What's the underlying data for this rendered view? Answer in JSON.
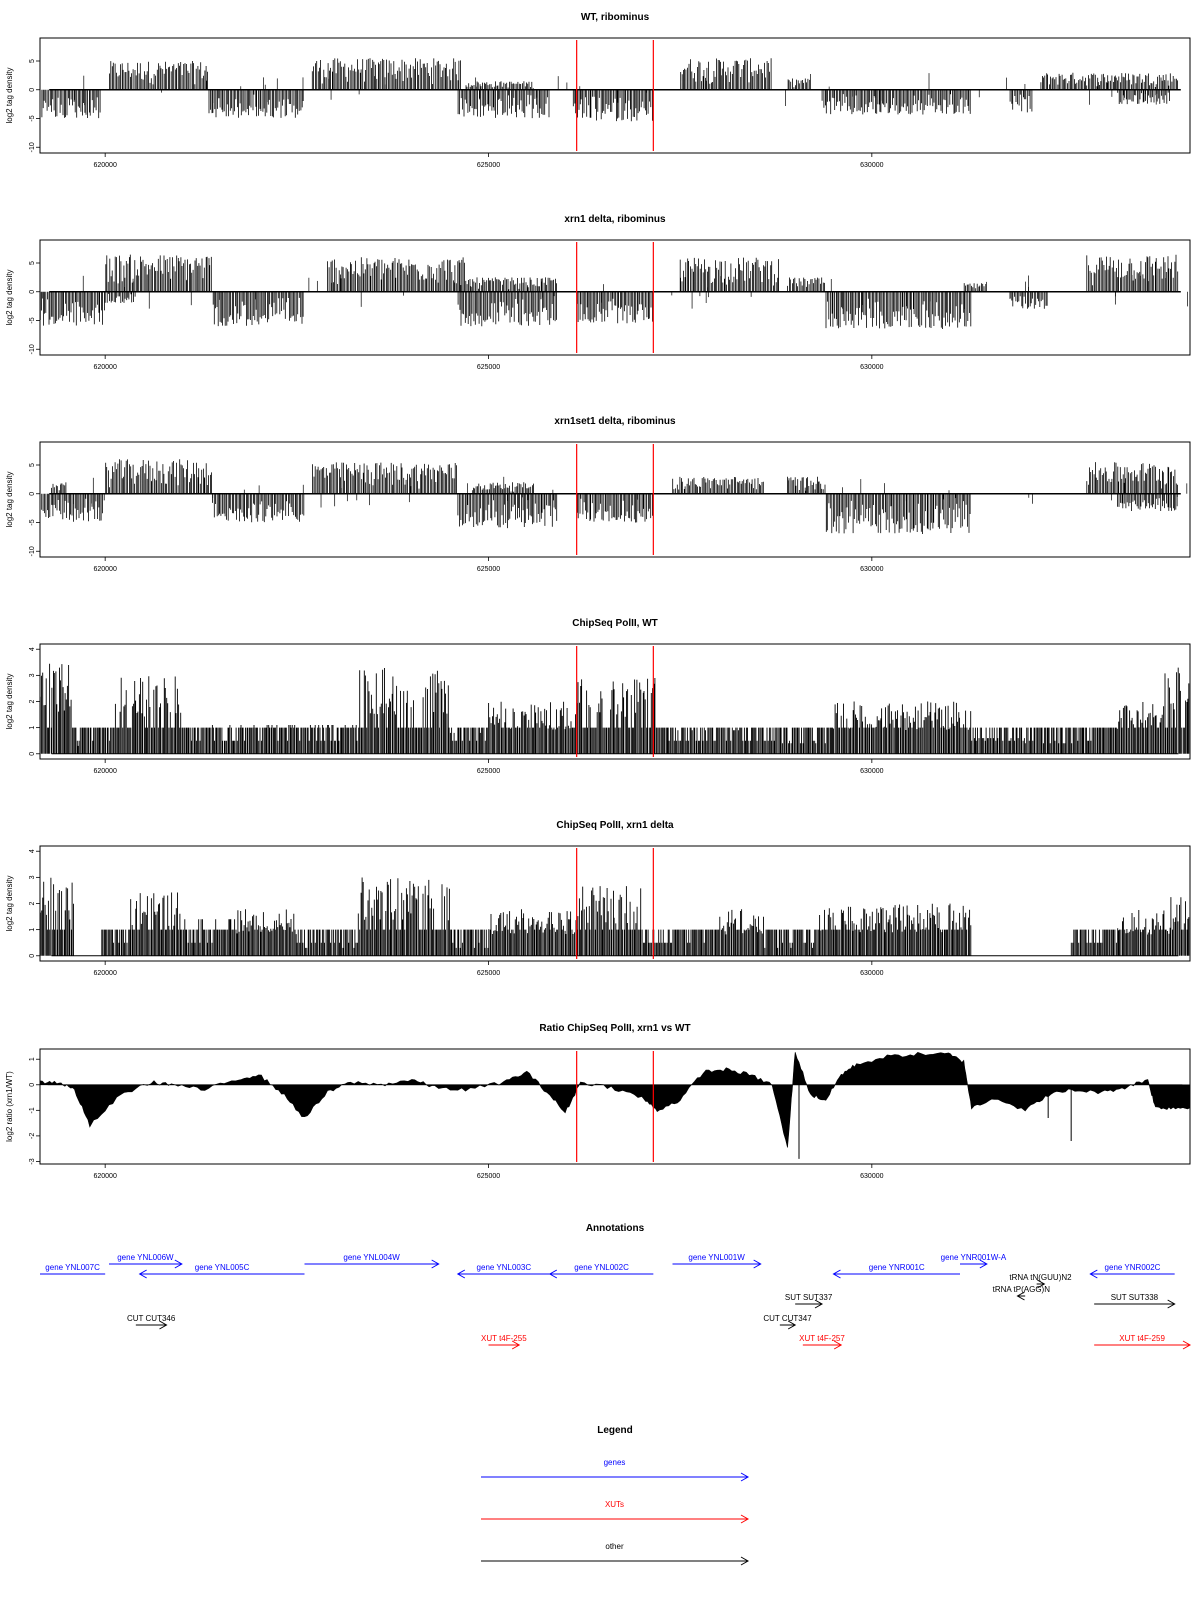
{
  "chart_data": [
    {
      "type": "bar",
      "title": "WT, ribominus",
      "xlabel": "",
      "ylabel": "log2 tag density",
      "xlim": [
        619150,
        634150
      ],
      "ylim": [
        -11,
        9
      ],
      "x_ticks": [
        620000,
        625000,
        630000
      ],
      "y_ticks": [
        -10,
        -5,
        0,
        5
      ],
      "markers": [
        626150,
        627150
      ],
      "series": [
        {
          "strand": "plus",
          "sign": 1,
          "segments": [
            [
              620050,
              621350,
              5
            ],
            [
              622700,
              624650,
              5.5
            ],
            [
              624700,
              625600,
              1.5
            ],
            [
              627500,
              628700,
              5.5
            ],
            [
              628900,
              629200,
              2
            ],
            [
              632200,
              634000,
              3
            ]
          ]
        },
        {
          "strand": "minus",
          "sign": -1,
          "segments": [
            [
              619150,
              619950,
              5
            ],
            [
              621350,
              622600,
              5
            ],
            [
              624600,
              625800,
              5
            ],
            [
              626100,
              627150,
              5.5
            ],
            [
              629350,
              631300,
              4.5
            ],
            [
              631800,
              632100,
              4
            ],
            [
              633200,
              633900,
              2.5
            ]
          ]
        }
      ]
    },
    {
      "type": "bar",
      "title": "xrn1 delta, ribominus",
      "xlabel": "",
      "ylabel": "log2 tag density",
      "xlim": [
        619150,
        634150
      ],
      "ylim": [
        -11,
        9
      ],
      "x_ticks": [
        620000,
        625000,
        630000
      ],
      "y_ticks": [
        -10,
        -5,
        0,
        5
      ],
      "markers": [
        626150,
        627150
      ],
      "series": [
        {
          "strand": "plus",
          "sign": 1,
          "segments": [
            [
              620000,
              621400,
              6.5
            ],
            [
              622900,
              624700,
              6
            ],
            [
              624700,
              625900,
              2.5
            ],
            [
              627500,
              628800,
              6
            ],
            [
              628900,
              629400,
              2.5
            ],
            [
              631200,
              631500,
              1.5
            ],
            [
              632800,
              634000,
              6.5
            ]
          ]
        },
        {
          "strand": "minus",
          "sign": -1,
          "segments": [
            [
              619150,
              620000,
              6
            ],
            [
              620000,
              620400,
              2
            ],
            [
              621400,
              622600,
              6
            ],
            [
              624600,
              625900,
              6
            ],
            [
              626150,
              627150,
              5.5
            ],
            [
              629400,
              631300,
              6.5
            ],
            [
              631800,
              632300,
              3
            ]
          ]
        }
      ]
    },
    {
      "type": "bar",
      "title": "xrn1set1 delta, ribominus",
      "xlabel": "",
      "ylabel": "log2 tag density",
      "xlim": [
        619150,
        634150
      ],
      "ylim": [
        -11,
        9
      ],
      "x_ticks": [
        620000,
        625000,
        630000
      ],
      "y_ticks": [
        -10,
        -5,
        0,
        5
      ],
      "markers": [
        626150,
        627150
      ],
      "series": [
        {
          "strand": "plus",
          "sign": 1,
          "segments": [
            [
              619300,
              619500,
              2
            ],
            [
              620000,
              621400,
              6
            ],
            [
              622700,
              624600,
              5.5
            ],
            [
              624800,
              625600,
              2
            ],
            [
              627400,
              628600,
              3
            ],
            [
              628900,
              629400,
              3
            ],
            [
              632800,
              634000,
              5.5
            ]
          ]
        },
        {
          "strand": "minus",
          "sign": -1,
          "segments": [
            [
              619150,
              620000,
              5
            ],
            [
              621400,
              622600,
              5
            ],
            [
              624600,
              625900,
              6
            ],
            [
              626150,
              627150,
              5
            ],
            [
              629400,
              631300,
              7
            ],
            [
              633200,
              634000,
              3
            ]
          ]
        }
      ]
    },
    {
      "type": "bar",
      "title": "ChipSeq PolII, WT",
      "xlabel": "",
      "ylabel": "log2 tag density",
      "xlim": [
        619150,
        634150
      ],
      "ylim": [
        -0.2,
        4.2
      ],
      "x_ticks": [
        620000,
        625000,
        630000
      ],
      "y_ticks": [
        0,
        1,
        2,
        3,
        4
      ],
      "markers": [
        626150,
        627150
      ],
      "series": [
        {
          "name": "",
          "segments": [
            [
              619150,
              619600,
              3.5
            ],
            [
              619600,
              619750,
              0.3
            ],
            [
              619750,
              620100,
              1.0
            ],
            [
              620100,
              621000,
              3.0
            ],
            [
              621000,
              623300,
              1.1
            ],
            [
              623300,
              624500,
              3.3
            ],
            [
              624500,
              625000,
              0.8
            ],
            [
              625000,
              626150,
              2.0
            ],
            [
              626150,
              627200,
              3.0
            ],
            [
              627200,
              628300,
              0.9
            ],
            [
              628300,
              628800,
              0.5
            ],
            [
              628800,
              629500,
              0.4
            ],
            [
              629500,
              630300,
              2.0
            ],
            [
              630300,
              631300,
              2.0
            ],
            [
              631300,
              632000,
              0.6
            ],
            [
              632000,
              632700,
              0.4
            ],
            [
              632700,
              633200,
              1.0
            ],
            [
              633200,
              633800,
              2.0
            ],
            [
              633800,
              634150,
              3.3
            ]
          ]
        }
      ]
    },
    {
      "type": "bar",
      "title": "ChipSeq PolII, xrn1 delta",
      "xlabel": "",
      "ylabel": "log2 tag density",
      "xlim": [
        619150,
        634150
      ],
      "ylim": [
        -0.2,
        4.2
      ],
      "x_ticks": [
        620000,
        625000,
        630000
      ],
      "y_ticks": [
        0,
        1,
        2,
        3,
        4
      ],
      "markers": [
        626150,
        627150
      ],
      "series": [
        {
          "name": "",
          "segments": [
            [
              619150,
              619600,
              3.0
            ],
            [
              619600,
              619950,
              0
            ],
            [
              619950,
              620300,
              1.0
            ],
            [
              620300,
              621000,
              2.5
            ],
            [
              621000,
              621700,
              1.4
            ],
            [
              621700,
              622500,
              1.8
            ],
            [
              622500,
              623300,
              0.3
            ],
            [
              623300,
              624500,
              3.0
            ],
            [
              624500,
              625000,
              0.3
            ],
            [
              625000,
              626150,
              1.8
            ],
            [
              626150,
              627000,
              2.7
            ],
            [
              627000,
              627400,
              0.5
            ],
            [
              627400,
              628000,
              1.0
            ],
            [
              628000,
              628600,
              1.8
            ],
            [
              628600,
              629300,
              0.3
            ],
            [
              629300,
              630500,
              2.0
            ],
            [
              630500,
              631300,
              2.0
            ],
            [
              631300,
              632600,
              0
            ],
            [
              632600,
              633200,
              0.5
            ],
            [
              633200,
              633900,
              1.8
            ],
            [
              633900,
              634150,
              2.3
            ]
          ]
        }
      ]
    },
    {
      "type": "area",
      "title": "Ratio ChipSeq PolII, xrn1 vs WT",
      "xlabel": "",
      "ylabel": "log2 ratio (xrn1/WT)",
      "xlim": [
        619150,
        634150
      ],
      "ylim": [
        -3.1,
        1.4
      ],
      "x_ticks": [
        620000,
        625000,
        630000
      ],
      "y_ticks": [
        -3,
        -2,
        -1,
        0,
        1
      ],
      "markers": [
        626150,
        627150
      ],
      "series": [
        {
          "name": "",
          "points": [
            [
              619150,
              0.1
            ],
            [
              619400,
              0.1
            ],
            [
              619600,
              -0.2
            ],
            [
              619800,
              -1.6
            ],
            [
              620200,
              -0.4
            ],
            [
              620600,
              0.1
            ],
            [
              620900,
              0.0
            ],
            [
              621300,
              -0.2
            ],
            [
              621700,
              0.2
            ],
            [
              622000,
              0.4
            ],
            [
              622300,
              -0.3
            ],
            [
              622600,
              -1.3
            ],
            [
              622900,
              -0.3
            ],
            [
              623200,
              0.1
            ],
            [
              623600,
              0.0
            ],
            [
              624000,
              0.2
            ],
            [
              624300,
              -0.1
            ],
            [
              624700,
              -0.2
            ],
            [
              625200,
              0.1
            ],
            [
              625500,
              0.5
            ],
            [
              625800,
              -0.4
            ],
            [
              626000,
              -1.1
            ],
            [
              626200,
              0.1
            ],
            [
              626600,
              -0.1
            ],
            [
              627000,
              -0.5
            ],
            [
              627200,
              -1.0
            ],
            [
              627500,
              -0.6
            ],
            [
              627800,
              0.5
            ],
            [
              628100,
              0.6
            ],
            [
              628400,
              0.4
            ],
            [
              628700,
              0.0
            ],
            [
              628900,
              -2.5
            ],
            [
              629000,
              1.3
            ],
            [
              629200,
              -0.4
            ],
            [
              629400,
              -0.6
            ],
            [
              629600,
              0.4
            ],
            [
              629800,
              0.8
            ],
            [
              630200,
              1.1
            ],
            [
              630600,
              1.2
            ],
            [
              631000,
              1.2
            ],
            [
              631200,
              0.9
            ],
            [
              631300,
              -0.9
            ],
            [
              631600,
              -0.5
            ],
            [
              632000,
              -1.0
            ],
            [
              632300,
              -0.4
            ],
            [
              632600,
              -0.2
            ],
            [
              633000,
              -0.3
            ],
            [
              633300,
              -0.1
            ],
            [
              633600,
              0.2
            ],
            [
              633700,
              -0.9
            ],
            [
              633900,
              -0.9
            ],
            [
              634150,
              -0.9
            ]
          ]
        }
      ]
    }
  ],
  "annotations": {
    "title": "Annotations",
    "xlim": [
      619150,
      634150
    ],
    "items": [
      {
        "label": "gene YNL007C",
        "start": 619150,
        "end": 620000,
        "dir": "left",
        "color": "#0000ff",
        "row": 1,
        "arrow_head": false
      },
      {
        "label": "gene YNL006W",
        "start": 620050,
        "end": 621000,
        "dir": "right",
        "color": "#0000ff",
        "row": 0
      },
      {
        "label": "gene YNL005C",
        "start": 620450,
        "end": 622600,
        "dir": "left",
        "color": "#0000ff",
        "row": 1
      },
      {
        "label": "gene YNL004W",
        "start": 622600,
        "end": 624350,
        "dir": "right",
        "color": "#0000ff",
        "row": 0
      },
      {
        "label": "gene YNL003C",
        "start": 624600,
        "end": 625800,
        "dir": "left",
        "color": "#0000ff",
        "row": 1
      },
      {
        "label": "gene YNL002C",
        "start": 625800,
        "end": 627150,
        "dir": "left",
        "color": "#0000ff",
        "row": 1
      },
      {
        "label": "gene YNL001W",
        "start": 627400,
        "end": 628550,
        "dir": "right",
        "color": "#0000ff",
        "row": 0
      },
      {
        "label": "gene YNR001C",
        "start": 629500,
        "end": 631150,
        "dir": "left",
        "color": "#0000ff",
        "row": 1
      },
      {
        "label": "gene YNR001W-A",
        "start": 631150,
        "end": 631500,
        "dir": "right",
        "color": "#0000ff",
        "row": 0
      },
      {
        "label": "gene YNR002C",
        "start": 632850,
        "end": 633950,
        "dir": "left",
        "color": "#0000ff",
        "row": 1
      },
      {
        "label": "tRNA tN(GUU)N2",
        "start": 632150,
        "end": 632250,
        "dir": "right",
        "color": "#000000",
        "row": 2
      },
      {
        "label": "tRNA tP(AGG)N",
        "start": 631900,
        "end": 632000,
        "dir": "left",
        "color": "#000000",
        "row": 3
      },
      {
        "label": "SUT SUT337",
        "start": 629000,
        "end": 629350,
        "dir": "right",
        "color": "#000000",
        "row": 4
      },
      {
        "label": "SUT SUT338",
        "start": 632900,
        "end": 633950,
        "dir": "right",
        "color": "#000000",
        "row": 4
      },
      {
        "label": "CUT CUT346",
        "start": 620400,
        "end": 620800,
        "dir": "right",
        "color": "#000000",
        "row": 5
      },
      {
        "label": "CUT CUT347",
        "start": 628800,
        "end": 629000,
        "dir": "right",
        "color": "#000000",
        "row": 5
      },
      {
        "label": "XUT t4F-255",
        "start": 625000,
        "end": 625400,
        "dir": "right",
        "color": "#ff0000",
        "row": 6
      },
      {
        "label": "XUT t4F-257",
        "start": 629100,
        "end": 629600,
        "dir": "right",
        "color": "#ff0000",
        "row": 6
      },
      {
        "label": "XUT t4F-259",
        "start": 632900,
        "end": 634150,
        "dir": "right",
        "color": "#ff0000",
        "row": 6
      }
    ]
  },
  "legend": {
    "title": "Legend",
    "items": [
      {
        "label": "genes",
        "color": "#0000ff"
      },
      {
        "label": "XUTs",
        "color": "#ff0000"
      },
      {
        "label": "other",
        "color": "#000000"
      }
    ]
  },
  "colors": {
    "marker": "#ff0000",
    "bars": "#000000",
    "baseline": "#000000"
  }
}
